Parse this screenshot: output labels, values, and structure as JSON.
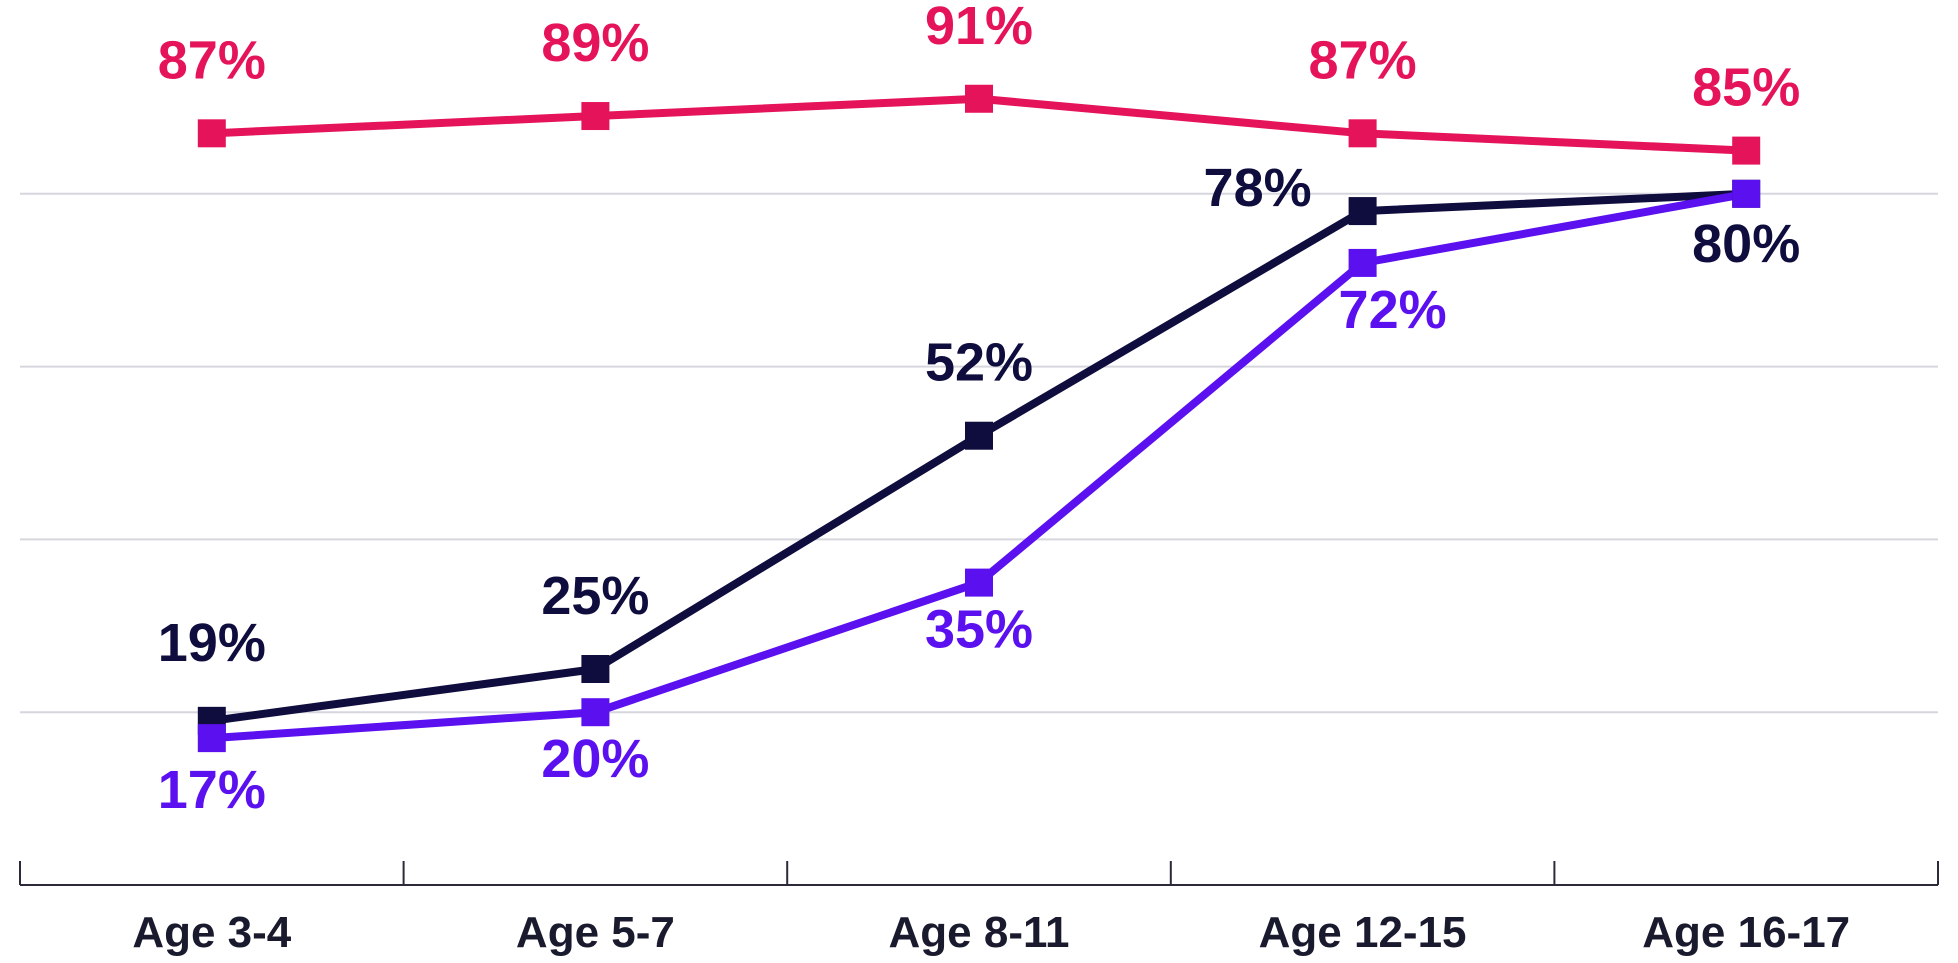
{
  "chart_data": {
    "type": "line",
    "categories": [
      "Age 3-4",
      "Age 5-7",
      "Age 8-11",
      "Age 12-15",
      "Age 16-17"
    ],
    "ylim": [
      0,
      100
    ],
    "grid": true,
    "series": [
      {
        "values": [
          87,
          89,
          91,
          87,
          85
        ],
        "color": "#e5135a",
        "labels": [
          "87%",
          "89%",
          "91%",
          "87%",
          "85%"
        ]
      },
      {
        "values": [
          19,
          25,
          52,
          78,
          80
        ],
        "color": "#0f0c3e",
        "labels": [
          "19%",
          "25%",
          "52%",
          "78%",
          "80%"
        ]
      },
      {
        "values": [
          17,
          20,
          35,
          72,
          80
        ],
        "color": "#5b10f0",
        "labels": [
          "17%",
          "20%",
          "35%",
          "72%",
          "80%"
        ]
      }
    ]
  }
}
